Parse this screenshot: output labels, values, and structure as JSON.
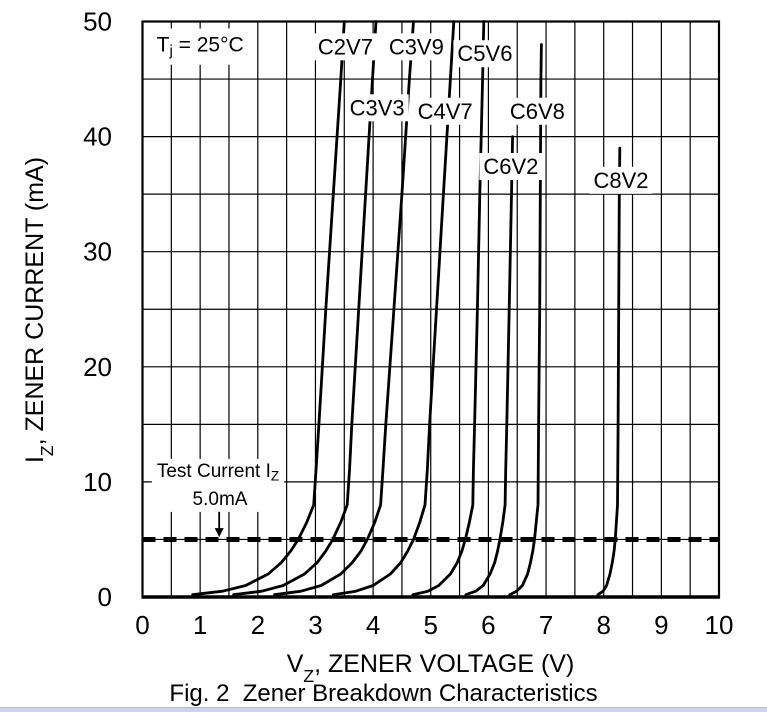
{
  "figure": {
    "caption": "Fig. 2  Zener Breakdown Characteristics",
    "page_edge_color": "#cdd4ec",
    "ink_color": "#000000",
    "background_color": "#ffffff"
  },
  "chart_data": {
    "type": "line",
    "title": "Zener Breakdown Characteristics",
    "xlabel": {
      "pre": "V",
      "sub": "Z",
      "post": ", ZENER VOLTAGE (V)"
    },
    "ylabel": {
      "pre": "I",
      "sub": "Z",
      "post": ", ZENER CURRENT (mA)"
    },
    "xlim": [
      0,
      10
    ],
    "ylim": [
      0,
      50
    ],
    "x_ticks": [
      0,
      1,
      2,
      3,
      4,
      5,
      6,
      7,
      8,
      9,
      10
    ],
    "y_ticks": [
      0,
      10,
      20,
      30,
      40,
      50
    ],
    "x_grid_step": 0.5,
    "y_grid_step": 5,
    "grid": true,
    "condition": {
      "pre": "T",
      "sub": "j",
      "post": " = 25°C",
      "anchor": {
        "v": 1.0,
        "i": 48.0
      }
    },
    "test_current": {
      "value_mA": 5.0,
      "line1": {
        "pre": "Test Current I",
        "sub": "Z"
      },
      "line2": "5.0mA",
      "label_anchor": {
        "v": 1.31,
        "i": 11.0
      },
      "arrow": {
        "v": 1.33,
        "i_from": 7.4,
        "i_to": 5.2
      }
    },
    "series": [
      {
        "name": "C2V7",
        "nominal_v": 2.7,
        "label_anchor": {
          "v": 3.52,
          "i": 47.8
        },
        "points": [
          [
            0.87,
            0.2
          ],
          [
            1.39,
            0.5
          ],
          [
            1.79,
            1
          ],
          [
            2.18,
            2
          ],
          [
            2.41,
            3
          ],
          [
            2.57,
            4
          ],
          [
            2.7,
            5
          ],
          [
            2.85,
            6.5
          ],
          [
            2.97,
            8
          ],
          [
            3.01,
            11
          ],
          [
            3.06,
            15
          ],
          [
            3.18,
            25
          ],
          [
            3.31,
            35
          ],
          [
            3.44,
            45
          ],
          [
            3.5,
            50
          ]
        ]
      },
      {
        "name": "C3V3",
        "nominal_v": 3.3,
        "label_anchor": {
          "v": 4.07,
          "i": 42.5
        },
        "points": [
          [
            1.58,
            0.2
          ],
          [
            2.07,
            0.5
          ],
          [
            2.44,
            1
          ],
          [
            2.81,
            2
          ],
          [
            3.03,
            3
          ],
          [
            3.18,
            4
          ],
          [
            3.3,
            5
          ],
          [
            3.44,
            6.5
          ],
          [
            3.55,
            8
          ],
          [
            3.59,
            11
          ],
          [
            3.63,
            15
          ],
          [
            3.75,
            25
          ],
          [
            3.87,
            35
          ],
          [
            3.99,
            45
          ],
          [
            4.05,
            50
          ]
        ]
      },
      {
        "name": "C3V9",
        "nominal_v": 3.9,
        "label_anchor": {
          "v": 4.75,
          "i": 47.8
        },
        "points": [
          [
            2.29,
            0.2
          ],
          [
            2.75,
            0.5
          ],
          [
            3.1,
            1
          ],
          [
            3.44,
            2
          ],
          [
            3.64,
            3
          ],
          [
            3.79,
            4
          ],
          [
            3.9,
            5
          ],
          [
            4.03,
            6.5
          ],
          [
            4.13,
            8
          ],
          [
            4.17,
            11
          ],
          [
            4.22,
            15
          ],
          [
            4.36,
            25
          ],
          [
            4.5,
            35
          ],
          [
            4.63,
            45
          ],
          [
            4.7,
            50
          ]
        ]
      },
      {
        "name": "C4V7",
        "nominal_v": 4.7,
        "label_anchor": {
          "v": 5.25,
          "i": 42.2
        },
        "points": [
          [
            3.31,
            0.2
          ],
          [
            3.7,
            0.5
          ],
          [
            4.0,
            1
          ],
          [
            4.3,
            2
          ],
          [
            4.48,
            3
          ],
          [
            4.6,
            4
          ],
          [
            4.7,
            5
          ],
          [
            4.81,
            6.5
          ],
          [
            4.9,
            8
          ],
          [
            4.94,
            11
          ],
          [
            4.98,
            15
          ],
          [
            5.1,
            25
          ],
          [
            5.22,
            35
          ],
          [
            5.34,
            45
          ],
          [
            5.4,
            50
          ]
        ]
      },
      {
        "name": "C5V6",
        "nominal_v": 5.6,
        "label_anchor": {
          "v": 5.94,
          "i": 47.2
        },
        "points": [
          [
            4.69,
            0.2
          ],
          [
            4.95,
            0.5
          ],
          [
            5.14,
            1
          ],
          [
            5.34,
            2
          ],
          [
            5.46,
            3
          ],
          [
            5.54,
            4
          ],
          [
            5.6,
            5
          ],
          [
            5.67,
            6.5
          ],
          [
            5.73,
            8
          ],
          [
            5.74,
            11
          ],
          [
            5.76,
            15
          ],
          [
            5.81,
            25
          ],
          [
            5.85,
            35
          ],
          [
            5.9,
            45
          ],
          [
            5.92,
            50
          ]
        ]
      },
      {
        "name": "C6V2",
        "nominal_v": 6.2,
        "label_anchor": {
          "v": 6.39,
          "i": 37.4
        },
        "points": [
          [
            5.61,
            0.2
          ],
          [
            5.78,
            0.5
          ],
          [
            5.91,
            1
          ],
          [
            6.03,
            2
          ],
          [
            6.11,
            3
          ],
          [
            6.16,
            4
          ],
          [
            6.2,
            5
          ],
          [
            6.25,
            6.5
          ],
          [
            6.29,
            8
          ],
          [
            6.3,
            11
          ],
          [
            6.32,
            15
          ],
          [
            6.36,
            25
          ],
          [
            6.4,
            35
          ],
          [
            6.42,
            40
          ]
        ]
      },
      {
        "name": "C6V8",
        "nominal_v": 6.8,
        "label_anchor": {
          "v": 6.85,
          "i": 42.2
        },
        "points": [
          [
            6.37,
            0.2
          ],
          [
            6.49,
            0.5
          ],
          [
            6.59,
            1
          ],
          [
            6.68,
            2
          ],
          [
            6.73,
            3
          ],
          [
            6.77,
            4
          ],
          [
            6.8,
            5
          ],
          [
            6.83,
            6.5
          ],
          [
            6.86,
            8
          ],
          [
            6.87,
            15
          ],
          [
            6.89,
            25
          ],
          [
            6.9,
            35
          ],
          [
            6.91,
            45
          ],
          [
            6.92,
            48
          ]
        ]
      },
      {
        "name": "C8V2",
        "nominal_v": 8.2,
        "label_anchor": {
          "v": 8.3,
          "i": 36.2
        },
        "points": [
          [
            7.9,
            0.2
          ],
          [
            7.99,
            0.5
          ],
          [
            8.05,
            1
          ],
          [
            8.11,
            2
          ],
          [
            8.15,
            3
          ],
          [
            8.18,
            4
          ],
          [
            8.2,
            5
          ],
          [
            8.22,
            6.5
          ],
          [
            8.24,
            8
          ],
          [
            8.25,
            15
          ],
          [
            8.26,
            25
          ],
          [
            8.27,
            35
          ],
          [
            8.28,
            39
          ]
        ]
      }
    ]
  }
}
